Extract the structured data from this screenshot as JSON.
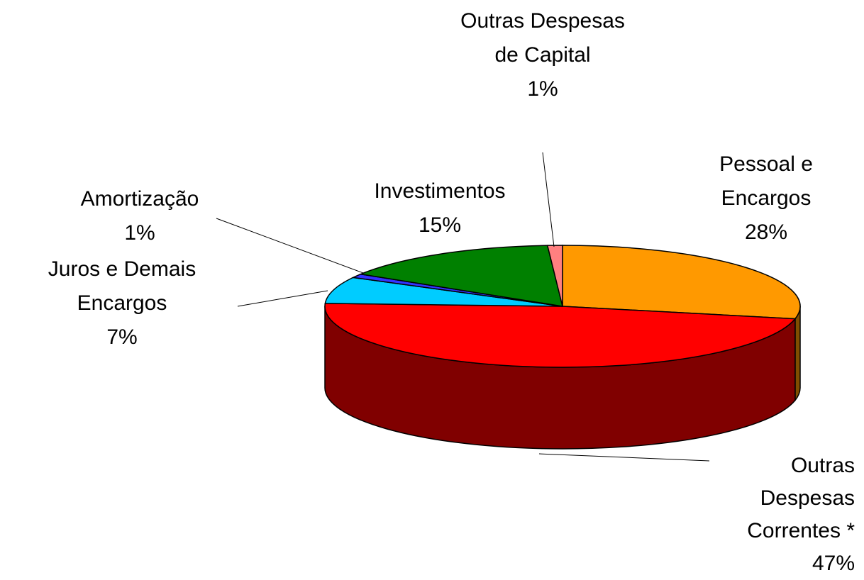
{
  "chart_data": {
    "type": "pie3d",
    "categories": [
      "Pessoal e Encargos",
      "Outras Despesas Correntes *",
      "Juros e Demais Encargos",
      "Amortização",
      "Investimentos",
      "Outras Despesas de Capital"
    ],
    "values": [
      28,
      47,
      7,
      1,
      15,
      1
    ],
    "value_labels": [
      "28%",
      "47%",
      "7%",
      "1%",
      "15%",
      "1%"
    ],
    "colors": [
      "#ff9900",
      "#ff0000",
      "#00ccff",
      "#3333ff",
      "#008000",
      "#ff8080"
    ]
  }
}
